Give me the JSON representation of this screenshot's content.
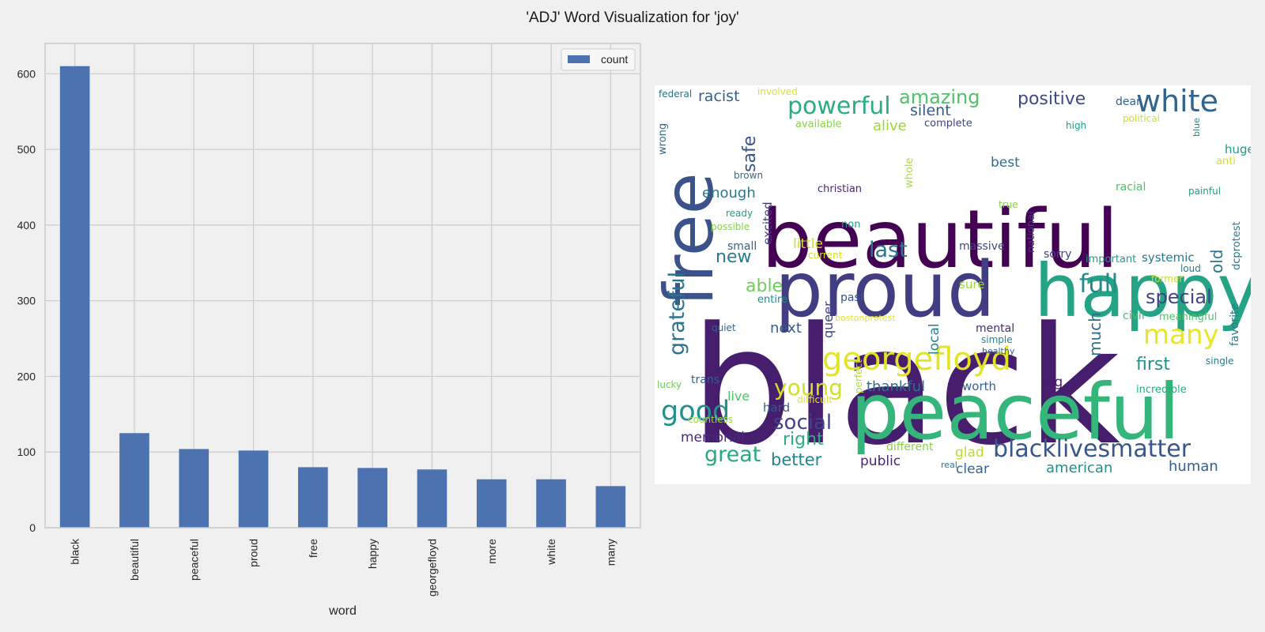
{
  "figure": {
    "title": "'ADJ' Word Visualization for 'joy'"
  },
  "chart_data": [
    {
      "type": "bar",
      "title": "",
      "xlabel": "word",
      "ylabel": "",
      "categories": [
        "black",
        "beautiful",
        "peaceful",
        "proud",
        "free",
        "happy",
        "georgefloyd",
        "more",
        "white",
        "many"
      ],
      "series": [
        {
          "name": "count",
          "values": [
            610,
            125,
            104,
            102,
            80,
            79,
            77,
            64,
            64,
            55
          ],
          "color": "#4c72b0"
        }
      ],
      "ylim": [
        0,
        640
      ],
      "yticks": [
        0,
        100,
        200,
        300,
        400,
        500,
        600
      ],
      "grid": true,
      "legend": "top-right"
    },
    {
      "type": "wordcloud",
      "colormap": "viridis",
      "background": "#ffffff",
      "words": [
        {
          "text": "black",
          "rel": 1.0
        },
        {
          "text": "beautiful",
          "rel": 0.6
        },
        {
          "text": "peaceful",
          "rel": 0.56
        },
        {
          "text": "proud",
          "rel": 0.56
        },
        {
          "text": "happy",
          "rel": 0.55
        },
        {
          "text": "free",
          "rel": 0.5
        },
        {
          "text": "georgefloyd",
          "rel": 0.3
        },
        {
          "text": "white",
          "rel": 0.25
        },
        {
          "text": "blacklivesmatter",
          "rel": 0.2
        },
        {
          "text": "many",
          "rel": 0.2
        },
        {
          "text": "good",
          "rel": 0.2
        },
        {
          "text": "powerful",
          "rel": 0.18
        },
        {
          "text": "full",
          "rel": 0.18
        },
        {
          "text": "young",
          "rel": 0.17
        },
        {
          "text": "social",
          "rel": 0.16
        },
        {
          "text": "grateful",
          "rel": 0.16
        },
        {
          "text": "great",
          "rel": 0.16
        },
        {
          "text": "last",
          "rel": 0.16
        },
        {
          "text": "special",
          "rel": 0.15
        },
        {
          "text": "amazing",
          "rel": 0.14
        },
        {
          "text": "positive",
          "rel": 0.14
        },
        {
          "text": "much",
          "rel": 0.13
        },
        {
          "text": "first",
          "rel": 0.13
        },
        {
          "text": "safe",
          "rel": 0.13
        },
        {
          "text": "new",
          "rel": 0.13
        },
        {
          "text": "able",
          "rel": 0.13
        },
        {
          "text": "right",
          "rel": 0.13
        },
        {
          "text": "better",
          "rel": 0.12
        },
        {
          "text": "racist",
          "rel": 0.12
        },
        {
          "text": "silent",
          "rel": 0.12
        },
        {
          "text": "enough",
          "rel": 0.11
        },
        {
          "text": "alive",
          "rel": 0.11
        },
        {
          "text": "memorial",
          "rel": 0.11
        },
        {
          "text": "old",
          "rel": 0.11
        },
        {
          "text": "next",
          "rel": 0.11
        },
        {
          "text": "thankful",
          "rel": 0.11
        },
        {
          "text": "human",
          "rel": 0.11
        },
        {
          "text": "american",
          "rel": 0.11
        },
        {
          "text": "best",
          "rel": 0.1
        },
        {
          "text": "local",
          "rel": 0.1
        },
        {
          "text": "queer",
          "rel": 0.1
        },
        {
          "text": "little",
          "rel": 0.1
        },
        {
          "text": "public",
          "rel": 0.1
        },
        {
          "text": "clear",
          "rel": 0.1
        },
        {
          "text": "live",
          "rel": 0.1
        },
        {
          "text": "big",
          "rel": 0.1
        },
        {
          "text": "glad",
          "rel": 0.1
        },
        {
          "text": "huge",
          "rel": 0.09
        },
        {
          "text": "systemic",
          "rel": 0.09
        },
        {
          "text": "excited",
          "rel": 0.09
        },
        {
          "text": "hard",
          "rel": 0.09
        },
        {
          "text": "worth",
          "rel": 0.09
        },
        {
          "text": "sure",
          "rel": 0.09
        },
        {
          "text": "massive",
          "rel": 0.09
        },
        {
          "text": "past",
          "rel": 0.09
        },
        {
          "text": "sorry",
          "rel": 0.09
        },
        {
          "text": "racial",
          "rel": 0.09
        },
        {
          "text": "small",
          "rel": 0.09
        },
        {
          "text": "different",
          "rel": 0.09
        },
        {
          "text": "available",
          "rel": 0.08
        },
        {
          "text": "complete",
          "rel": 0.08
        },
        {
          "text": "favorite",
          "rel": 0.08
        },
        {
          "text": "civil",
          "rel": 0.08
        },
        {
          "text": "incredible",
          "rel": 0.08
        },
        {
          "text": "important",
          "rel": 0.08
        },
        {
          "text": "trans",
          "rel": 0.08
        },
        {
          "text": "mental",
          "rel": 0.08
        },
        {
          "text": "dear",
          "rel": 0.08
        },
        {
          "text": "christian",
          "rel": 0.08
        },
        {
          "text": "dcprotest",
          "rel": 0.08
        },
        {
          "text": "meaningful",
          "rel": 0.08
        },
        {
          "text": "wrong",
          "rel": 0.08
        },
        {
          "text": "entire",
          "rel": 0.07
        },
        {
          "text": "whole",
          "rel": 0.07
        },
        {
          "text": "national",
          "rel": 0.07
        },
        {
          "text": "non",
          "rel": 0.07
        },
        {
          "text": "simple",
          "rel": 0.07
        },
        {
          "text": "anti",
          "rel": 0.07
        },
        {
          "text": "painful",
          "rel": 0.07
        },
        {
          "text": "former",
          "rel": 0.07
        },
        {
          "text": "political",
          "rel": 0.07
        },
        {
          "text": "countless",
          "rel": 0.07
        },
        {
          "text": "perfect",
          "rel": 0.07
        },
        {
          "text": "loud",
          "rel": 0.07
        },
        {
          "text": "ready",
          "rel": 0.07
        },
        {
          "text": "possible",
          "rel": 0.07
        },
        {
          "text": "healthy",
          "rel": 0.06
        },
        {
          "text": "federal",
          "rel": 0.06
        },
        {
          "text": "involved",
          "rel": 0.06
        },
        {
          "text": "high",
          "rel": 0.06
        },
        {
          "text": "blue",
          "rel": 0.06
        },
        {
          "text": "true",
          "rel": 0.06
        },
        {
          "text": "current",
          "rel": 0.06
        },
        {
          "text": "bostonprotest",
          "rel": 0.06
        },
        {
          "text": "difficult",
          "rel": 0.06
        },
        {
          "text": "brown",
          "rel": 0.06
        },
        {
          "text": "lucky",
          "rel": 0.06
        },
        {
          "text": "quiet",
          "rel": 0.06
        },
        {
          "text": "single",
          "rel": 0.06
        },
        {
          "text": "real",
          "rel": 0.06
        }
      ]
    }
  ]
}
